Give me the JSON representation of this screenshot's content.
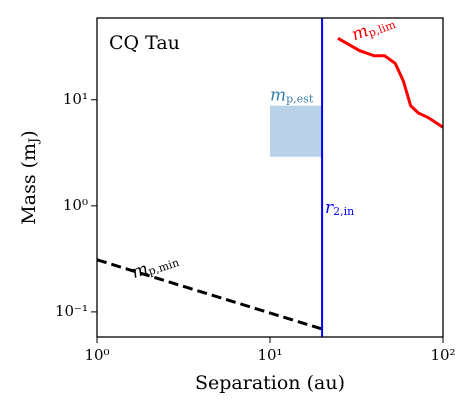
{
  "chart_data": {
    "type": "line",
    "title": "CQ Tau",
    "xlabel": "Separation (au)",
    "ylabel": {
      "text": "Mass (m",
      "sub": "J",
      "after": ")"
    },
    "xscale": "log",
    "yscale": "log",
    "xlim": [
      1,
      100
    ],
    "ylim": [
      0.058,
      59
    ],
    "xticks": [
      {
        "value": 1,
        "label": "10⁰"
      },
      {
        "value": 10,
        "label": "10¹"
      },
      {
        "value": 100,
        "label": "10²"
      }
    ],
    "yticks": [
      {
        "value": 0.1,
        "label": "10⁻¹"
      },
      {
        "value": 1,
        "label": "10⁰"
      },
      {
        "value": 10,
        "label": "10¹"
      }
    ],
    "series": [
      {
        "color": "#000000",
        "dash": true,
        "x": [
          1,
          20
        ],
        "values": [
          0.31,
          0.069
        ]
      },
      {
        "color": "#ff0000",
        "dash": false,
        "x": [
          24.7,
          33,
          40,
          46,
          53,
          59,
          65,
          72,
          82,
          100
        ],
        "values": [
          38,
          29,
          26,
          26,
          22,
          15,
          8.8,
          7.5,
          6.8,
          5.5
        ]
      }
    ],
    "vlines": [
      {
        "x": 20,
        "color": "#0000ff"
      }
    ],
    "spans": [
      {
        "x": [
          10,
          20
        ],
        "y": [
          2.9,
          8.8
        ],
        "color": "#b9d2e8"
      }
    ],
    "annotations": [
      {
        "text": "m",
        "sub": "p,min",
        "x": 1.6,
        "y": 0.23,
        "rotate": -18,
        "color": "#000000"
      },
      {
        "text": "m",
        "sub": "p,lim",
        "x": 30,
        "y": 40,
        "rotate": -20,
        "color": "#ff0000"
      },
      {
        "text": "m",
        "sub": "p,est",
        "x": 10,
        "y": 11,
        "rotate": 0,
        "color": "#3a7fb0"
      },
      {
        "text": "r",
        "sub": "2,in",
        "x": 20.8,
        "y": 0.95,
        "rotate": 0,
        "color": "#0000ff"
      }
    ]
  }
}
